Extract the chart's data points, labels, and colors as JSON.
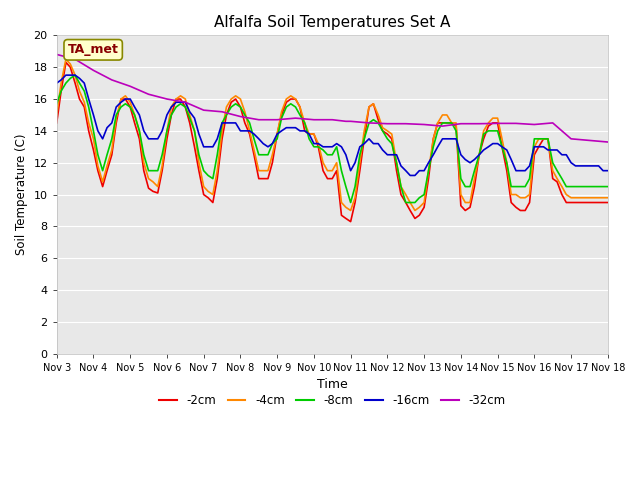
{
  "title": "Alfalfa Soil Temperatures Set A",
  "xlabel": "Time",
  "ylabel": "Soil Temperature (C)",
  "ylim": [
    0,
    20
  ],
  "xlim": [
    0,
    15
  ],
  "fig_bg": "#c8c8c8",
  "plot_bg": "#e8e8e8",
  "annotation_text": "TA_met",
  "annotation_bg": "#ffffcc",
  "annotation_fg": "#880000",
  "annotation_border": "#888800",
  "x_tick_labels": [
    "Nov 3",
    "Nov 4",
    "Nov 5",
    "Nov 6",
    "Nov 7",
    "Nov 8",
    "Nov 9",
    "Nov 10",
    "Nov 11",
    "Nov 12",
    "Nov 13",
    "Nov 14",
    "Nov 15",
    "Nov 16",
    "Nov 17",
    "Nov 18"
  ],
  "series": [
    {
      "label": "-2cm",
      "color": "#ee0000",
      "x": [
        0.0,
        0.12,
        0.25,
        0.37,
        0.5,
        0.62,
        0.75,
        0.87,
        1.0,
        1.12,
        1.25,
        1.37,
        1.5,
        1.62,
        1.75,
        1.87,
        2.0,
        2.12,
        2.25,
        2.37,
        2.5,
        2.62,
        2.75,
        2.87,
        3.0,
        3.12,
        3.25,
        3.37,
        3.5,
        3.62,
        3.75,
        3.87,
        4.0,
        4.12,
        4.25,
        4.37,
        4.5,
        4.62,
        4.75,
        4.87,
        5.0,
        5.12,
        5.25,
        5.37,
        5.5,
        5.62,
        5.75,
        5.87,
        6.0,
        6.12,
        6.25,
        6.37,
        6.5,
        6.62,
        6.75,
        6.87,
        7.0,
        7.12,
        7.25,
        7.37,
        7.5,
        7.62,
        7.75,
        7.87,
        8.0,
        8.12,
        8.25,
        8.37,
        8.5,
        8.62,
        8.75,
        8.87,
        9.0,
        9.12,
        9.25,
        9.37,
        9.5,
        9.62,
        9.75,
        9.87,
        10.0,
        10.12,
        10.25,
        10.37,
        10.5,
        10.62,
        10.75,
        10.87,
        11.0,
        11.12,
        11.25,
        11.37,
        11.5,
        11.62,
        11.75,
        11.87,
        12.0,
        12.12,
        12.25,
        12.37,
        12.5,
        12.62,
        12.75,
        12.87,
        13.0,
        13.12,
        13.25,
        13.37,
        13.5,
        13.62,
        13.75,
        13.87,
        14.0,
        14.12,
        14.25,
        14.37,
        14.5,
        14.62,
        14.75,
        14.87,
        15.0
      ],
      "y": [
        14.5,
        16.5,
        18.3,
        18.0,
        17.0,
        16.0,
        15.5,
        14.0,
        12.8,
        11.5,
        10.5,
        11.5,
        12.5,
        14.5,
        16.0,
        16.0,
        15.5,
        14.5,
        13.5,
        11.5,
        10.4,
        10.2,
        10.1,
        11.5,
        13.5,
        15.0,
        16.0,
        16.0,
        15.5,
        14.5,
        13.0,
        11.5,
        10.0,
        9.8,
        9.5,
        11.0,
        13.5,
        15.0,
        15.8,
        16.0,
        15.5,
        14.5,
        13.8,
        12.5,
        11.0,
        11.0,
        11.0,
        12.0,
        13.8,
        15.0,
        15.8,
        16.0,
        16.0,
        15.5,
        14.0,
        13.8,
        13.8,
        13.0,
        11.5,
        11.0,
        11.0,
        11.5,
        8.7,
        8.5,
        8.3,
        9.5,
        11.5,
        13.5,
        15.5,
        15.7,
        14.7,
        14.0,
        13.8,
        13.5,
        11.5,
        10.0,
        9.5,
        9.0,
        8.5,
        8.7,
        9.2,
        11.0,
        13.5,
        14.5,
        14.5,
        14.5,
        14.5,
        14.3,
        9.3,
        9.0,
        9.2,
        10.5,
        12.5,
        13.5,
        14.3,
        14.5,
        14.5,
        13.0,
        11.5,
        9.5,
        9.2,
        9.0,
        9.0,
        9.5,
        12.5,
        13.0,
        13.5,
        13.5,
        11.0,
        10.8,
        10.0,
        9.5,
        9.5,
        9.5,
        9.5,
        9.5,
        9.5,
        9.5,
        9.5,
        9.5,
        9.5
      ]
    },
    {
      "label": "-4cm",
      "color": "#ff8800",
      "x": [
        0.0,
        0.12,
        0.25,
        0.37,
        0.5,
        0.62,
        0.75,
        0.87,
        1.0,
        1.12,
        1.25,
        1.37,
        1.5,
        1.62,
        1.75,
        1.87,
        2.0,
        2.12,
        2.25,
        2.37,
        2.5,
        2.62,
        2.75,
        2.87,
        3.0,
        3.12,
        3.25,
        3.37,
        3.5,
        3.62,
        3.75,
        3.87,
        4.0,
        4.12,
        4.25,
        4.37,
        4.5,
        4.62,
        4.75,
        4.87,
        5.0,
        5.12,
        5.25,
        5.37,
        5.5,
        5.62,
        5.75,
        5.87,
        6.0,
        6.12,
        6.25,
        6.37,
        6.5,
        6.62,
        6.75,
        6.87,
        7.0,
        7.12,
        7.25,
        7.37,
        7.5,
        7.62,
        7.75,
        7.87,
        8.0,
        8.12,
        8.25,
        8.37,
        8.5,
        8.62,
        8.75,
        8.87,
        9.0,
        9.12,
        9.25,
        9.37,
        9.5,
        9.62,
        9.75,
        9.87,
        10.0,
        10.12,
        10.25,
        10.37,
        10.5,
        10.62,
        10.75,
        10.87,
        11.0,
        11.12,
        11.25,
        11.37,
        11.5,
        11.62,
        11.75,
        11.87,
        12.0,
        12.12,
        12.25,
        12.37,
        12.5,
        12.62,
        12.75,
        12.87,
        13.0,
        13.12,
        13.25,
        13.37,
        13.5,
        13.62,
        13.75,
        13.87,
        14.0,
        14.12,
        14.25,
        14.37,
        14.5,
        14.62,
        14.75,
        14.87,
        15.0
      ],
      "y": [
        15.0,
        17.0,
        18.5,
        18.2,
        17.5,
        16.5,
        15.8,
        14.5,
        13.5,
        11.8,
        10.8,
        11.8,
        12.8,
        14.8,
        16.0,
        16.2,
        15.8,
        15.0,
        14.0,
        12.0,
        11.0,
        10.8,
        10.5,
        11.8,
        14.0,
        15.5,
        16.0,
        16.2,
        16.0,
        15.0,
        14.0,
        12.0,
        10.5,
        10.2,
        10.0,
        11.5,
        14.0,
        15.5,
        16.0,
        16.2,
        16.0,
        15.2,
        14.0,
        12.8,
        11.5,
        11.5,
        11.5,
        12.5,
        13.8,
        15.2,
        16.0,
        16.2,
        16.0,
        15.5,
        14.5,
        13.8,
        13.8,
        13.2,
        12.0,
        11.5,
        11.5,
        12.0,
        9.5,
        9.2,
        9.0,
        9.8,
        12.0,
        14.0,
        15.5,
        15.7,
        15.0,
        14.2,
        14.0,
        13.8,
        12.0,
        10.5,
        10.0,
        9.5,
        9.0,
        9.2,
        9.5,
        11.5,
        13.5,
        14.5,
        15.0,
        15.0,
        14.5,
        14.5,
        10.0,
        9.5,
        9.5,
        11.0,
        12.5,
        14.0,
        14.5,
        14.8,
        14.8,
        13.5,
        12.0,
        10.0,
        10.0,
        9.8,
        9.8,
        10.0,
        13.0,
        13.5,
        13.5,
        13.5,
        11.5,
        11.0,
        10.5,
        10.0,
        9.8,
        9.8,
        9.8,
        9.8,
        9.8,
        9.8,
        9.8,
        9.8,
        9.8
      ]
    },
    {
      "label": "-8cm",
      "color": "#00cc00",
      "x": [
        0.0,
        0.12,
        0.25,
        0.37,
        0.5,
        0.62,
        0.75,
        0.87,
        1.0,
        1.12,
        1.25,
        1.37,
        1.5,
        1.62,
        1.75,
        1.87,
        2.0,
        2.12,
        2.25,
        2.37,
        2.5,
        2.62,
        2.75,
        2.87,
        3.0,
        3.12,
        3.25,
        3.37,
        3.5,
        3.62,
        3.75,
        3.87,
        4.0,
        4.12,
        4.25,
        4.37,
        4.5,
        4.62,
        4.75,
        4.87,
        5.0,
        5.12,
        5.25,
        5.37,
        5.5,
        5.62,
        5.75,
        5.87,
        6.0,
        6.12,
        6.25,
        6.37,
        6.5,
        6.62,
        6.75,
        6.87,
        7.0,
        7.12,
        7.25,
        7.37,
        7.5,
        7.62,
        7.75,
        7.87,
        8.0,
        8.12,
        8.25,
        8.37,
        8.5,
        8.62,
        8.75,
        8.87,
        9.0,
        9.12,
        9.25,
        9.37,
        9.5,
        9.62,
        9.75,
        9.87,
        10.0,
        10.12,
        10.25,
        10.37,
        10.5,
        10.62,
        10.75,
        10.87,
        11.0,
        11.12,
        11.25,
        11.37,
        11.5,
        11.62,
        11.75,
        11.87,
        12.0,
        12.12,
        12.25,
        12.37,
        12.5,
        12.62,
        12.75,
        12.87,
        13.0,
        13.12,
        13.25,
        13.37,
        13.5,
        13.62,
        13.75,
        13.87,
        14.0,
        14.12,
        14.25,
        14.37,
        14.5,
        14.62,
        14.75,
        14.87,
        15.0
      ],
      "y": [
        15.7,
        16.5,
        17.0,
        17.3,
        17.5,
        17.0,
        16.5,
        15.5,
        14.0,
        12.5,
        11.5,
        12.5,
        13.5,
        15.0,
        15.5,
        15.7,
        15.5,
        15.0,
        14.0,
        12.5,
        11.5,
        11.5,
        11.5,
        12.5,
        14.0,
        15.0,
        15.5,
        15.7,
        15.5,
        14.8,
        14.0,
        12.5,
        11.5,
        11.2,
        11.0,
        12.5,
        14.5,
        15.0,
        15.5,
        15.7,
        15.5,
        15.0,
        14.5,
        13.5,
        12.5,
        12.5,
        12.5,
        13.2,
        13.5,
        14.8,
        15.5,
        15.7,
        15.5,
        15.0,
        14.5,
        13.5,
        13.0,
        13.0,
        12.8,
        12.5,
        12.5,
        13.0,
        11.5,
        10.5,
        9.5,
        10.5,
        12.5,
        13.5,
        14.5,
        14.7,
        14.5,
        14.0,
        13.5,
        13.2,
        12.0,
        10.5,
        9.5,
        9.5,
        9.5,
        9.8,
        10.0,
        11.5,
        13.0,
        14.0,
        14.5,
        14.5,
        14.5,
        14.0,
        11.0,
        10.5,
        10.5,
        11.5,
        12.5,
        13.8,
        14.0,
        14.0,
        14.0,
        13.0,
        12.0,
        10.5,
        10.5,
        10.5,
        10.5,
        11.0,
        13.5,
        13.5,
        13.5,
        13.5,
        12.0,
        11.5,
        11.0,
        10.5,
        10.5,
        10.5,
        10.5,
        10.5,
        10.5,
        10.5,
        10.5,
        10.5,
        10.5
      ]
    },
    {
      "label": "-16cm",
      "color": "#0000cc",
      "x": [
        0.0,
        0.12,
        0.25,
        0.37,
        0.5,
        0.62,
        0.75,
        0.87,
        1.0,
        1.12,
        1.25,
        1.37,
        1.5,
        1.62,
        1.75,
        1.87,
        2.0,
        2.12,
        2.25,
        2.37,
        2.5,
        2.62,
        2.75,
        2.87,
        3.0,
        3.12,
        3.25,
        3.37,
        3.5,
        3.62,
        3.75,
        3.87,
        4.0,
        4.12,
        4.25,
        4.37,
        4.5,
        4.62,
        4.75,
        4.87,
        5.0,
        5.12,
        5.25,
        5.37,
        5.5,
        5.62,
        5.75,
        5.87,
        6.0,
        6.12,
        6.25,
        6.37,
        6.5,
        6.62,
        6.75,
        6.87,
        7.0,
        7.12,
        7.25,
        7.37,
        7.5,
        7.62,
        7.75,
        7.87,
        8.0,
        8.12,
        8.25,
        8.37,
        8.5,
        8.62,
        8.75,
        8.87,
        9.0,
        9.12,
        9.25,
        9.37,
        9.5,
        9.62,
        9.75,
        9.87,
        10.0,
        10.12,
        10.25,
        10.37,
        10.5,
        10.62,
        10.75,
        10.87,
        11.0,
        11.12,
        11.25,
        11.37,
        11.5,
        11.62,
        11.75,
        11.87,
        12.0,
        12.12,
        12.25,
        12.37,
        12.5,
        12.62,
        12.75,
        12.87,
        13.0,
        13.12,
        13.25,
        13.37,
        13.5,
        13.62,
        13.75,
        13.87,
        14.0,
        14.12,
        14.25,
        14.37,
        14.5,
        14.62,
        14.75,
        14.87,
        15.0
      ],
      "y": [
        17.0,
        17.2,
        17.5,
        17.5,
        17.5,
        17.3,
        17.0,
        16.0,
        15.0,
        14.0,
        13.5,
        14.2,
        14.5,
        15.5,
        15.8,
        16.0,
        16.0,
        15.5,
        15.0,
        14.0,
        13.5,
        13.5,
        13.5,
        14.0,
        15.0,
        15.5,
        15.8,
        15.8,
        15.8,
        15.2,
        14.8,
        13.8,
        13.0,
        13.0,
        13.0,
        13.5,
        14.5,
        14.5,
        14.5,
        14.5,
        14.0,
        14.0,
        14.0,
        13.8,
        13.5,
        13.2,
        13.0,
        13.2,
        13.8,
        14.0,
        14.2,
        14.2,
        14.2,
        14.0,
        14.0,
        13.8,
        13.2,
        13.2,
        13.0,
        13.0,
        13.0,
        13.2,
        13.0,
        12.5,
        11.5,
        12.0,
        13.0,
        13.2,
        13.5,
        13.2,
        13.2,
        12.8,
        12.5,
        12.5,
        12.5,
        11.8,
        11.5,
        11.2,
        11.2,
        11.5,
        11.5,
        12.0,
        12.5,
        13.0,
        13.5,
        13.5,
        13.5,
        13.5,
        12.5,
        12.2,
        12.0,
        12.2,
        12.5,
        12.8,
        13.0,
        13.2,
        13.2,
        13.0,
        12.8,
        12.2,
        11.5,
        11.5,
        11.5,
        11.8,
        13.0,
        13.0,
        13.0,
        12.8,
        12.8,
        12.8,
        12.5,
        12.5,
        12.0,
        11.8,
        11.8,
        11.8,
        11.8,
        11.8,
        11.8,
        11.5,
        11.5
      ]
    },
    {
      "label": "-32cm",
      "color": "#bb00bb",
      "x": [
        0.0,
        0.5,
        1.0,
        1.5,
        2.0,
        2.5,
        3.0,
        3.5,
        4.0,
        4.5,
        5.0,
        5.5,
        6.0,
        6.5,
        7.0,
        7.5,
        7.87,
        8.0,
        8.5,
        9.0,
        9.5,
        10.0,
        10.5,
        11.0,
        11.5,
        12.0,
        12.5,
        13.0,
        13.5,
        14.0,
        14.5,
        15.0
      ],
      "y": [
        18.8,
        18.5,
        17.8,
        17.2,
        16.8,
        16.3,
        16.0,
        15.8,
        15.3,
        15.2,
        14.9,
        14.7,
        14.7,
        14.8,
        14.7,
        14.7,
        14.6,
        14.6,
        14.5,
        14.45,
        14.45,
        14.4,
        14.3,
        14.45,
        14.45,
        14.47,
        14.47,
        14.4,
        14.5,
        13.5,
        13.4,
        13.3
      ]
    }
  ],
  "legend_entries": [
    "-2cm",
    "-4cm",
    "-8cm",
    "-16cm",
    "-32cm"
  ],
  "legend_colors": [
    "#ee0000",
    "#ff8800",
    "#00cc00",
    "#0000cc",
    "#bb00bb"
  ]
}
